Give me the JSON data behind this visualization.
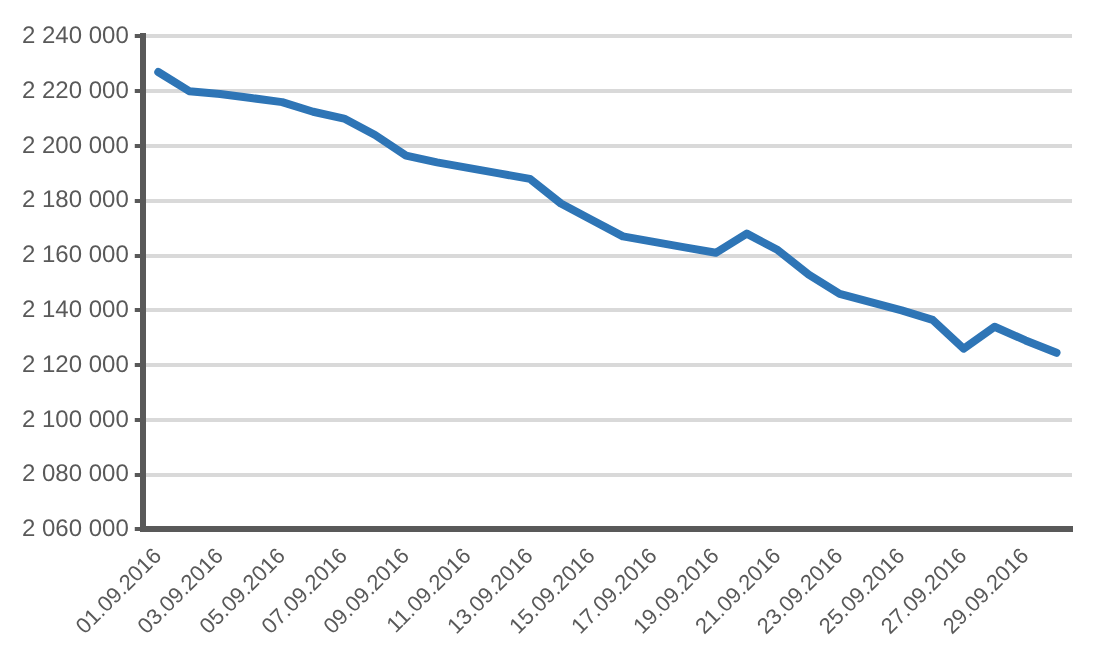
{
  "chart_data": {
    "type": "line",
    "categories": [
      "01.09.2016",
      null,
      "03.09.2016",
      null,
      "05.09.2016",
      null,
      "07.09.2016",
      null,
      "09.09.2016",
      null,
      "11.09.2016",
      null,
      "13.09.2016",
      null,
      "15.09.2016",
      null,
      "17.09.2016",
      null,
      "19.09.2016",
      null,
      "21.09.2016",
      null,
      "23.09.2016",
      null,
      "25.09.2016",
      null,
      "27.09.2016",
      null,
      "29.09.2016",
      null
    ],
    "series": [
      {
        "color": "#2e75b6",
        "values": [
          2227000,
          2220000,
          2219000,
          2217500,
          2216000,
          2212500,
          2210000,
          2204000,
          2196500,
          2194000,
          2192000,
          2190000,
          2188000,
          2179000,
          2173000,
          2167000,
          2165000,
          2163000,
          2161000,
          2168000,
          2162000,
          2153000,
          2146000,
          2143000,
          2140000,
          2136500,
          2126000,
          2134000,
          2129000,
          2124500
        ]
      }
    ],
    "ylim": [
      2060000,
      2240000
    ],
    "yticks": [
      {
        "value": 2060000,
        "label": "2 060 000"
      },
      {
        "value": 2080000,
        "label": "2 080 000"
      },
      {
        "value": 2100000,
        "label": "2 100 000"
      },
      {
        "value": 2120000,
        "label": "2 120 000"
      },
      {
        "value": 2140000,
        "label": "2 140 000"
      },
      {
        "value": 2160000,
        "label": "2 160 000"
      },
      {
        "value": 2180000,
        "label": "2 180 000"
      },
      {
        "value": 2200000,
        "label": "2 200 000"
      },
      {
        "value": 2220000,
        "label": "2 220 000"
      },
      {
        "value": 2240000,
        "label": "2 240 000"
      }
    ],
    "grid": "y",
    "legend": false,
    "marker": "none",
    "line_style": "solid"
  }
}
